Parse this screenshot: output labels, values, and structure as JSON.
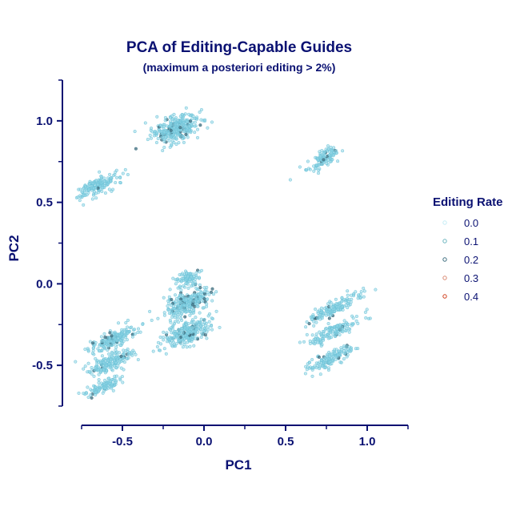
{
  "chart_data": {
    "type": "scatter",
    "title": "PCA of Editing-Capable Guides",
    "subtitle": "(maximum a posteriori editing > 2%)",
    "xlabel": "PC1",
    "ylabel": "PC2",
    "xlim": [
      -0.75,
      1.25
    ],
    "ylim": [
      -0.75,
      1.25
    ],
    "x_ticks": [
      -0.5,
      0.0,
      0.5,
      1.0
    ],
    "x_tick_labels": [
      "-0.5",
      "0.0",
      "0.5",
      "1.0"
    ],
    "y_ticks": [
      -0.5,
      0.0,
      0.5,
      1.0
    ],
    "y_tick_labels": [
      "-0.5",
      "0.0",
      "0.5",
      "1.0"
    ],
    "grid": false,
    "legend": {
      "title": "Editing Rate",
      "placement": "right",
      "entries": [
        {
          "label": "0.0",
          "color": "#c4ecf5"
        },
        {
          "label": "0.1",
          "color": "#6bb5bf"
        },
        {
          "label": "0.2",
          "color": "#3f6f80"
        },
        {
          "label": "0.3",
          "color": "#d98a73"
        },
        {
          "label": "0.4",
          "color": "#d0401e"
        }
      ]
    },
    "point_color": "#8fd5e6",
    "dark_point_color": "#3f6f80",
    "clusters": [
      {
        "cx": -0.18,
        "cy": 0.95,
        "sx": 0.07,
        "sy": 0.04,
        "slope": 0.25,
        "n": 320,
        "dark": 0.08
      },
      {
        "cx": 0.73,
        "cy": 0.77,
        "sx": 0.05,
        "sy": 0.025,
        "slope": 0.55,
        "n": 110,
        "dark": 0.03
      },
      {
        "cx": -0.66,
        "cy": 0.6,
        "sx": 0.07,
        "sy": 0.025,
        "slope": 0.4,
        "n": 170,
        "dark": 0.03
      },
      {
        "cx": -0.1,
        "cy": 0.03,
        "sx": 0.04,
        "sy": 0.025,
        "slope": 0.3,
        "n": 80,
        "dark": 0.03
      },
      {
        "cx": -0.1,
        "cy": -0.12,
        "sx": 0.07,
        "sy": 0.035,
        "slope": 0.35,
        "n": 280,
        "dark": 0.08
      },
      {
        "cx": -0.1,
        "cy": -0.3,
        "sx": 0.07,
        "sy": 0.035,
        "slope": 0.35,
        "n": 260,
        "dark": 0.08
      },
      {
        "cx": 0.8,
        "cy": -0.15,
        "sx": 0.08,
        "sy": 0.025,
        "slope": 0.45,
        "n": 150,
        "dark": 0.04
      },
      {
        "cx": 0.8,
        "cy": -0.29,
        "sx": 0.08,
        "sy": 0.025,
        "slope": 0.45,
        "n": 140,
        "dark": 0.05
      },
      {
        "cx": 0.77,
        "cy": -0.46,
        "sx": 0.07,
        "sy": 0.025,
        "slope": 0.45,
        "n": 140,
        "dark": 0.05
      },
      {
        "cx": -0.55,
        "cy": -0.34,
        "sx": 0.07,
        "sy": 0.025,
        "slope": 0.4,
        "n": 200,
        "dark": 0.05
      },
      {
        "cx": -0.57,
        "cy": -0.48,
        "sx": 0.07,
        "sy": 0.025,
        "slope": 0.4,
        "n": 170,
        "dark": 0.05
      },
      {
        "cx": -0.62,
        "cy": -0.63,
        "sx": 0.05,
        "sy": 0.02,
        "slope": 0.4,
        "n": 110,
        "dark": 0.03
      }
    ]
  }
}
